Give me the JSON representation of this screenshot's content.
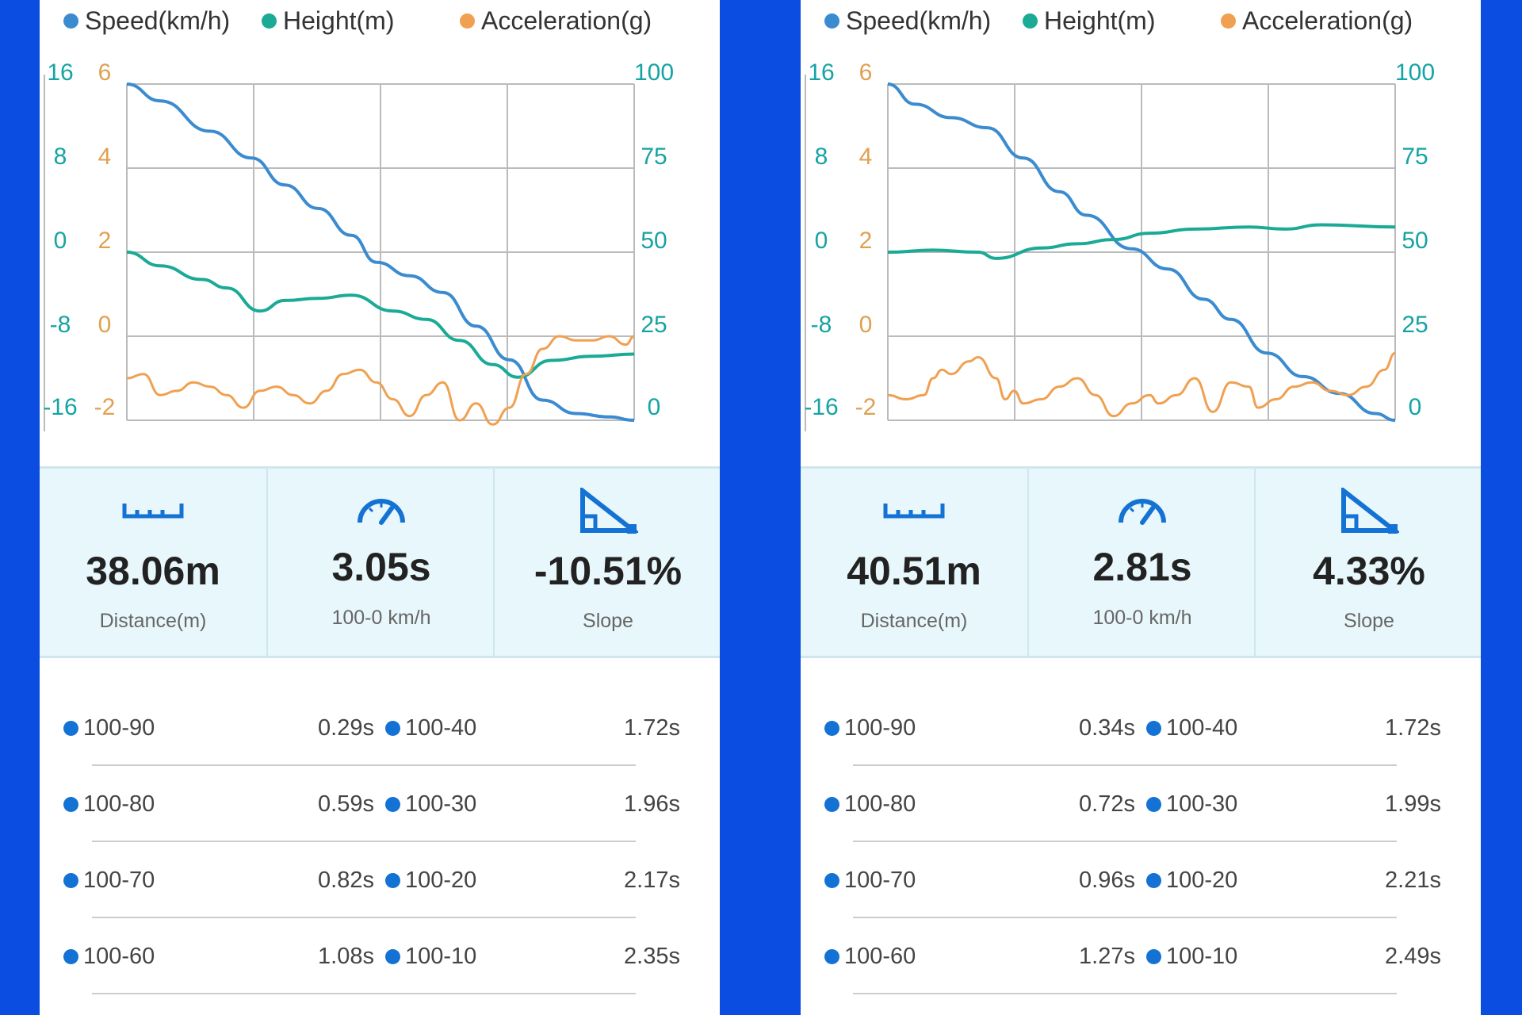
{
  "colors": {
    "background": "#0a4de0",
    "speed": "#3b8bd0",
    "height": "#1aaa96",
    "acceleration": "#f0a050",
    "speed_axis": "#16a3a3",
    "height_axis": "#16a3a3",
    "accel_axis": "#e0a050",
    "icon": "#1472d4",
    "grid": "#bbbbbb"
  },
  "panels": [
    {
      "legend": [
        "Speed(km/h)",
        "Height(m)",
        "Acceleration(g)"
      ],
      "chart_data": {
        "type": "line",
        "xlim": [
          0,
          3.05
        ],
        "x_grid_count": 4,
        "y_left_outer": {
          "ticks": [
            "16",
            "8",
            "0",
            "-8",
            "-16"
          ],
          "range": [
            -16,
            16
          ]
        },
        "y_left_inner": {
          "ticks": [
            "6",
            "4",
            "2",
            "0",
            "-2"
          ],
          "range": [
            -2,
            6
          ]
        },
        "y_right": {
          "ticks": [
            "100",
            "75",
            "50",
            "25",
            "0"
          ],
          "range": [
            0,
            100
          ]
        },
        "grid": true,
        "series": [
          {
            "name": "Speed(km/h)",
            "axis": "y_right",
            "x": [
              0,
              0.2,
              0.5,
              0.75,
              0.95,
              1.15,
              1.35,
              1.5,
              1.7,
              1.9,
              2.1,
              2.3,
              2.5,
              2.7,
              2.9,
              3.05
            ],
            "values": [
              100,
              95,
              86,
              78,
              70,
              63,
              55,
              47,
              43,
              38,
              28,
              18,
              6,
              2,
              1,
              0
            ]
          },
          {
            "name": "Height(m)",
            "axis": "y_left_outer",
            "x": [
              0,
              0.2,
              0.45,
              0.6,
              0.8,
              0.95,
              1.15,
              1.35,
              1.6,
              1.8,
              2.0,
              2.2,
              2.35,
              2.55,
              2.8,
              3.05
            ],
            "values": [
              0,
              -1.3,
              -2.6,
              -3.4,
              -5.6,
              -4.6,
              -4.4,
              -4.1,
              -5.6,
              -6.4,
              -8.4,
              -10.7,
              -11.9,
              -10.3,
              -9.9,
              -9.7
            ]
          },
          {
            "name": "Acceleration(g)",
            "axis": "y_left_inner",
            "x": [
              0,
              0.1,
              0.2,
              0.3,
              0.4,
              0.5,
              0.6,
              0.7,
              0.8,
              0.9,
              1.0,
              1.1,
              1.2,
              1.3,
              1.4,
              1.5,
              1.6,
              1.7,
              1.8,
              1.9,
              2.0,
              2.1,
              2.2,
              2.3,
              2.4,
              2.5,
              2.6,
              2.7,
              2.8,
              2.9,
              3.0,
              3.05
            ],
            "values": [
              -1.0,
              -0.9,
              -1.4,
              -1.3,
              -1.1,
              -1.2,
              -1.4,
              -1.7,
              -1.3,
              -1.2,
              -1.4,
              -1.6,
              -1.3,
              -0.9,
              -0.8,
              -1.1,
              -1.5,
              -1.9,
              -1.4,
              -1.1,
              -2.0,
              -1.6,
              -2.1,
              -1.7,
              -0.9,
              -0.3,
              0.0,
              -0.1,
              -0.1,
              0.0,
              -0.2,
              0.0
            ]
          }
        ]
      },
      "stats": [
        {
          "icon": "ruler-icon",
          "value": "38.06m",
          "label": "Distance(m)"
        },
        {
          "icon": "speedometer-icon",
          "value": "3.05s",
          "label": "100-0 km/h"
        },
        {
          "icon": "slope-icon",
          "value": "-10.51%",
          "label": "Slope"
        }
      ],
      "splits": [
        {
          "left_label": "100-90",
          "left_value": "0.29s",
          "right_label": "100-40",
          "right_value": "1.72s"
        },
        {
          "left_label": "100-80",
          "left_value": "0.59s",
          "right_label": "100-30",
          "right_value": "1.96s"
        },
        {
          "left_label": "100-70",
          "left_value": "0.82s",
          "right_label": "100-20",
          "right_value": "2.17s"
        },
        {
          "left_label": "100-60",
          "left_value": "1.08s",
          "right_label": "100-10",
          "right_value": "2.35s"
        }
      ]
    },
    {
      "legend": [
        "Speed(km/h)",
        "Height(m)",
        "Acceleration(g)"
      ],
      "chart_data": {
        "type": "line",
        "xlim": [
          0,
          2.81
        ],
        "x_grid_count": 4,
        "y_left_outer": {
          "ticks": [
            "16",
            "8",
            "0",
            "-8",
            "-16"
          ],
          "range": [
            -16,
            16
          ]
        },
        "y_left_inner": {
          "ticks": [
            "6",
            "4",
            "2",
            "0",
            "-2"
          ],
          "range": [
            -2,
            6
          ]
        },
        "y_right": {
          "ticks": [
            "100",
            "75",
            "50",
            "25",
            "0"
          ],
          "range": [
            0,
            100
          ]
        },
        "grid": true,
        "series": [
          {
            "name": "Speed(km/h)",
            "axis": "y_right",
            "x": [
              0,
              0.15,
              0.35,
              0.55,
              0.75,
              0.95,
              1.1,
              1.35,
              1.55,
              1.75,
              1.9,
              2.1,
              2.3,
              2.5,
              2.7,
              2.81
            ],
            "values": [
              100,
              94,
              90,
              87,
              78,
              68,
              61,
              51,
              45,
              36,
              30,
              20,
              13,
              8,
              2,
              0
            ]
          },
          {
            "name": "Height(m)",
            "axis": "y_left_outer",
            "x": [
              0,
              0.25,
              0.5,
              0.6,
              0.85,
              1.05,
              1.25,
              1.45,
              1.7,
              2.0,
              2.2,
              2.4,
              2.81
            ],
            "values": [
              0,
              0.2,
              0,
              -0.6,
              0.4,
              0.8,
              1.2,
              1.8,
              2.2,
              2.4,
              2.2,
              2.6,
              2.4
            ]
          },
          {
            "name": "Acceleration(g)",
            "axis": "y_left_inner",
            "x": [
              0,
              0.1,
              0.2,
              0.25,
              0.3,
              0.35,
              0.45,
              0.5,
              0.6,
              0.65,
              0.7,
              0.75,
              0.85,
              0.95,
              1.05,
              1.15,
              1.25,
              1.35,
              1.45,
              1.5,
              1.6,
              1.7,
              1.8,
              1.9,
              2.0,
              2.05,
              2.15,
              2.25,
              2.35,
              2.45,
              2.55,
              2.65,
              2.75,
              2.81
            ],
            "values": [
              -1.4,
              -1.5,
              -1.4,
              -1.0,
              -0.8,
              -0.9,
              -0.6,
              -0.5,
              -1.0,
              -1.5,
              -1.3,
              -1.6,
              -1.5,
              -1.2,
              -1.0,
              -1.4,
              -1.9,
              -1.6,
              -1.4,
              -1.6,
              -1.4,
              -1.0,
              -1.8,
              -1.1,
              -1.2,
              -1.7,
              -1.5,
              -1.2,
              -1.1,
              -1.3,
              -1.4,
              -1.2,
              -0.8,
              -0.4
            ]
          }
        ]
      },
      "stats": [
        {
          "icon": "ruler-icon",
          "value": "40.51m",
          "label": "Distance(m)"
        },
        {
          "icon": "speedometer-icon",
          "value": "2.81s",
          "label": "100-0 km/h"
        },
        {
          "icon": "slope-icon",
          "value": "4.33%",
          "label": "Slope"
        }
      ],
      "splits": [
        {
          "left_label": "100-90",
          "left_value": "0.34s",
          "right_label": "100-40",
          "right_value": "1.72s"
        },
        {
          "left_label": "100-80",
          "left_value": "0.72s",
          "right_label": "100-30",
          "right_value": "1.99s"
        },
        {
          "left_label": "100-70",
          "left_value": "0.96s",
          "right_label": "100-20",
          "right_value": "2.21s"
        },
        {
          "left_label": "100-60",
          "left_value": "1.27s",
          "right_label": "100-10",
          "right_value": "2.49s"
        }
      ]
    }
  ]
}
